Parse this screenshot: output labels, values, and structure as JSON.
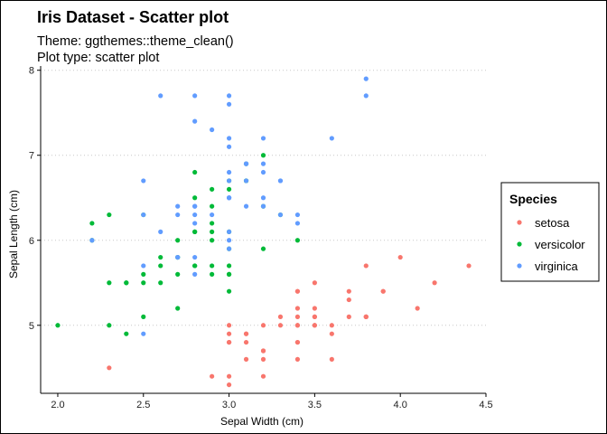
{
  "chart_data": {
    "type": "scatter",
    "title": "Iris Dataset - Scatter plot",
    "subtitle_lines": [
      "Theme: ggthemes::theme_clean()",
      "Plot type: scatter plot"
    ],
    "xlabel": "Sepal Width (cm)",
    "ylabel": "Sepal Length (cm)",
    "xlim": [
      1.9,
      4.5
    ],
    "ylim": [
      4.2,
      8.05
    ],
    "x_ticks": [
      2.0,
      2.5,
      3.0,
      3.5,
      4.0,
      4.5
    ],
    "x_tick_labels": [
      "2.0",
      "2.5",
      "3.0",
      "3.5",
      "4.0",
      "4.5"
    ],
    "y_ticks": [
      5,
      6,
      7,
      8
    ],
    "y_tick_labels": [
      "5",
      "6",
      "7",
      "8"
    ],
    "grid": "horizontal dotted",
    "legend_title": "Species",
    "legend_position": "right",
    "series": [
      {
        "name": "setosa",
        "color": "#F8766D",
        "points": [
          [
            3.5,
            5.1
          ],
          [
            3.0,
            4.9
          ],
          [
            3.2,
            4.7
          ],
          [
            3.1,
            4.6
          ],
          [
            3.6,
            5.0
          ],
          [
            3.9,
            5.4
          ],
          [
            3.4,
            4.6
          ],
          [
            3.4,
            5.0
          ],
          [
            2.9,
            4.4
          ],
          [
            3.1,
            4.9
          ],
          [
            3.7,
            5.4
          ],
          [
            3.4,
            4.8
          ],
          [
            3.0,
            4.8
          ],
          [
            3.0,
            4.3
          ],
          [
            4.0,
            5.8
          ],
          [
            4.4,
            5.7
          ],
          [
            3.9,
            5.4
          ],
          [
            3.5,
            5.1
          ],
          [
            3.8,
            5.7
          ],
          [
            3.8,
            5.1
          ],
          [
            3.4,
            5.4
          ],
          [
            3.7,
            5.1
          ],
          [
            3.6,
            4.6
          ],
          [
            3.3,
            5.1
          ],
          [
            3.4,
            4.8
          ],
          [
            3.0,
            5.0
          ],
          [
            3.4,
            5.0
          ],
          [
            3.5,
            5.2
          ],
          [
            3.4,
            5.2
          ],
          [
            3.2,
            4.7
          ],
          [
            3.1,
            4.8
          ],
          [
            3.4,
            5.4
          ],
          [
            4.1,
            5.2
          ],
          [
            4.2,
            5.5
          ],
          [
            3.1,
            4.9
          ],
          [
            3.2,
            5.0
          ],
          [
            3.5,
            5.5
          ],
          [
            3.6,
            4.9
          ],
          [
            3.0,
            4.4
          ],
          [
            3.4,
            5.1
          ],
          [
            3.5,
            5.0
          ],
          [
            2.3,
            4.5
          ],
          [
            3.2,
            4.4
          ],
          [
            3.5,
            5.0
          ],
          [
            3.8,
            5.1
          ],
          [
            3.0,
            4.8
          ],
          [
            3.8,
            5.1
          ],
          [
            3.2,
            4.6
          ],
          [
            3.7,
            5.3
          ],
          [
            3.3,
            5.0
          ]
        ]
      },
      {
        "name": "versicolor",
        "color": "#00BA38",
        "points": [
          [
            3.2,
            7.0
          ],
          [
            3.2,
            6.4
          ],
          [
            3.1,
            6.9
          ],
          [
            2.3,
            5.5
          ],
          [
            2.8,
            6.5
          ],
          [
            2.8,
            5.7
          ],
          [
            3.3,
            6.3
          ],
          [
            2.4,
            4.9
          ],
          [
            2.9,
            6.6
          ],
          [
            2.7,
            5.2
          ],
          [
            2.0,
            5.0
          ],
          [
            3.0,
            5.9
          ],
          [
            2.2,
            6.0
          ],
          [
            2.9,
            6.1
          ],
          [
            2.9,
            5.6
          ],
          [
            3.1,
            6.7
          ],
          [
            3.0,
            5.6
          ],
          [
            2.7,
            5.8
          ],
          [
            2.2,
            6.2
          ],
          [
            2.5,
            5.6
          ],
          [
            3.2,
            5.9
          ],
          [
            2.8,
            6.1
          ],
          [
            2.5,
            6.3
          ],
          [
            2.8,
            6.1
          ],
          [
            2.9,
            6.4
          ],
          [
            3.0,
            6.6
          ],
          [
            2.8,
            6.8
          ],
          [
            3.0,
            6.7
          ],
          [
            2.9,
            6.0
          ],
          [
            2.6,
            5.7
          ],
          [
            2.4,
            5.5
          ],
          [
            2.4,
            5.5
          ],
          [
            2.7,
            5.8
          ],
          [
            2.7,
            6.0
          ],
          [
            3.0,
            5.4
          ],
          [
            3.4,
            6.0
          ],
          [
            3.1,
            6.7
          ],
          [
            2.3,
            6.3
          ],
          [
            3.0,
            5.6
          ],
          [
            2.5,
            5.5
          ],
          [
            2.6,
            5.5
          ],
          [
            3.0,
            6.1
          ],
          [
            2.6,
            5.8
          ],
          [
            2.3,
            5.0
          ],
          [
            2.7,
            5.6
          ],
          [
            3.0,
            5.7
          ],
          [
            2.9,
            5.7
          ],
          [
            2.9,
            6.2
          ],
          [
            2.5,
            5.1
          ],
          [
            2.8,
            5.7
          ]
        ]
      },
      {
        "name": "virginica",
        "color": "#619CFF",
        "points": [
          [
            3.3,
            6.3
          ],
          [
            2.7,
            5.8
          ],
          [
            3.0,
            7.1
          ],
          [
            2.9,
            6.3
          ],
          [
            3.0,
            6.5
          ],
          [
            3.0,
            7.6
          ],
          [
            2.5,
            4.9
          ],
          [
            2.9,
            7.3
          ],
          [
            2.5,
            6.7
          ],
          [
            3.6,
            7.2
          ],
          [
            3.2,
            6.5
          ],
          [
            2.7,
            6.4
          ],
          [
            3.0,
            6.8
          ],
          [
            2.5,
            5.7
          ],
          [
            2.8,
            5.8
          ],
          [
            3.2,
            6.4
          ],
          [
            3.0,
            6.5
          ],
          [
            3.8,
            7.7
          ],
          [
            2.6,
            7.7
          ],
          [
            2.2,
            6.0
          ],
          [
            3.2,
            6.9
          ],
          [
            2.8,
            5.6
          ],
          [
            2.8,
            7.7
          ],
          [
            2.7,
            6.3
          ],
          [
            3.3,
            6.7
          ],
          [
            3.2,
            7.2
          ],
          [
            2.8,
            6.2
          ],
          [
            3.0,
            6.1
          ],
          [
            2.8,
            6.4
          ],
          [
            3.0,
            7.2
          ],
          [
            2.8,
            7.4
          ],
          [
            3.8,
            7.9
          ],
          [
            2.8,
            6.4
          ],
          [
            2.8,
            6.3
          ],
          [
            2.6,
            6.1
          ],
          [
            3.0,
            7.7
          ],
          [
            3.4,
            6.3
          ],
          [
            3.1,
            6.4
          ],
          [
            3.0,
            6.0
          ],
          [
            3.1,
            6.9
          ],
          [
            3.1,
            6.7
          ],
          [
            3.1,
            6.9
          ],
          [
            2.7,
            5.8
          ],
          [
            3.2,
            6.8
          ],
          [
            3.3,
            6.7
          ],
          [
            3.0,
            6.7
          ],
          [
            2.5,
            6.3
          ],
          [
            3.0,
            6.5
          ],
          [
            3.4,
            6.2
          ],
          [
            3.0,
            5.9
          ]
        ]
      }
    ]
  }
}
